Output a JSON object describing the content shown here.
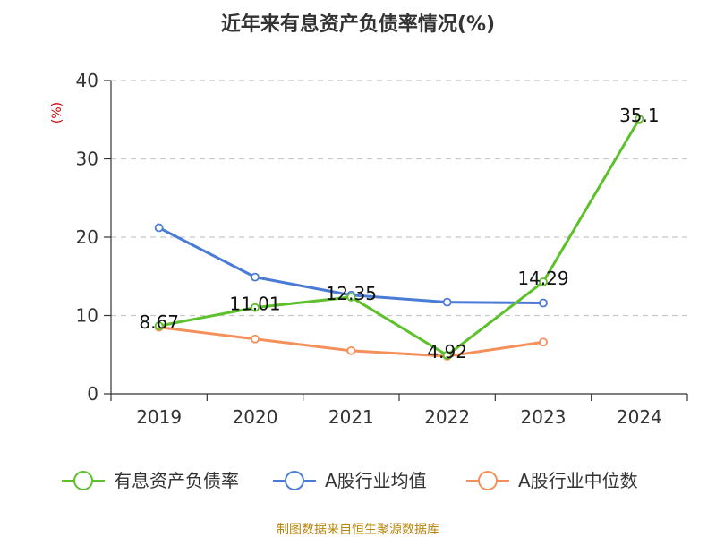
{
  "chart_data": {
    "type": "line",
    "title": "近年来有息资产负债率情况(%)",
    "ylabel": "(%)",
    "categories": [
      "2019",
      "2020",
      "2021",
      "2022",
      "2023",
      "2024"
    ],
    "ylim": [
      0,
      40
    ],
    "yticks": [
      0,
      10,
      20,
      30,
      40
    ],
    "grid": true,
    "legend_position": "bottom",
    "series": [
      {
        "name": "有息资产负债率",
        "color": "#5cc12a",
        "values": [
          8.67,
          11.01,
          12.35,
          4.92,
          14.29,
          35.1
        ],
        "labels": [
          "8.67",
          "11.01",
          "12.35",
          "4.92",
          "14.29",
          "35.1"
        ]
      },
      {
        "name": "A股行业均值",
        "color": "#4a7bd6",
        "values": [
          21.2,
          14.9,
          12.6,
          11.7,
          11.6,
          null
        ],
        "labels": []
      },
      {
        "name": "A股行业中位数",
        "color": "#f5905a",
        "values": [
          8.5,
          7.0,
          5.5,
          4.8,
          6.6,
          null
        ],
        "labels": []
      }
    ],
    "source": "制图数据来自恒生聚源数据库"
  }
}
